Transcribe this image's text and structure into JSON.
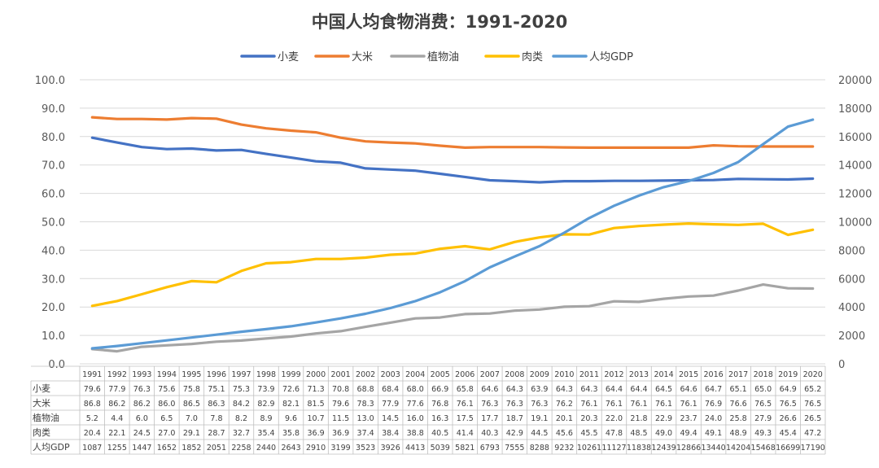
{
  "chart_data": {
    "type": "line",
    "title": "中国人均食物消费：1991-2020",
    "categories": [
      "1991",
      "1992",
      "1993",
      "1994",
      "1995",
      "1996",
      "1997",
      "1998",
      "1999",
      "2000",
      "2001",
      "2002",
      "2003",
      "2004",
      "2005",
      "2006",
      "2007",
      "2008",
      "2009",
      "2010",
      "2011",
      "2012",
      "2013",
      "2014",
      "2015",
      "2016",
      "2017",
      "2018",
      "2019",
      "2020"
    ],
    "y_left": {
      "min": 0,
      "max": 100,
      "ticks": [
        "0.0",
        "10.0",
        "20.0",
        "30.0",
        "40.0",
        "50.0",
        "60.0",
        "70.0",
        "80.0",
        "90.0",
        "100.0"
      ]
    },
    "y_right": {
      "min": 0,
      "max": 20000,
      "ticks": [
        "0",
        "2000",
        "4000",
        "6000",
        "8000",
        "10000",
        "12000",
        "14000",
        "16000",
        "18000",
        "20000"
      ]
    },
    "series": [
      {
        "name": "小麦",
        "axis": "left",
        "color": "#4472C4",
        "values": [
          79.6,
          77.9,
          76.3,
          75.6,
          75.8,
          75.1,
          75.3,
          73.9,
          72.6,
          71.3,
          70.8,
          68.8,
          68.4,
          68.0,
          66.9,
          65.8,
          64.6,
          64.3,
          63.9,
          64.3,
          64.3,
          64.4,
          64.4,
          64.5,
          64.6,
          64.7,
          65.1,
          65.0,
          64.9,
          65.2
        ]
      },
      {
        "name": "大米",
        "axis": "left",
        "color": "#ED7D31",
        "values": [
          86.8,
          86.2,
          86.2,
          86.0,
          86.5,
          86.3,
          84.2,
          82.9,
          82.1,
          81.5,
          79.6,
          78.3,
          77.9,
          77.6,
          76.8,
          76.1,
          76.3,
          76.3,
          76.3,
          76.2,
          76.1,
          76.1,
          76.1,
          76.1,
          76.1,
          76.9,
          76.6,
          76.5,
          76.5,
          76.5
        ]
      },
      {
        "name": "植物油",
        "axis": "left",
        "color": "#A5A5A5",
        "values": [
          5.2,
          4.4,
          6.0,
          6.5,
          7.0,
          7.8,
          8.2,
          8.9,
          9.6,
          10.7,
          11.5,
          13.0,
          14.5,
          16.0,
          16.3,
          17.5,
          17.7,
          18.7,
          19.1,
          20.1,
          20.3,
          22.0,
          21.8,
          22.9,
          23.7,
          24.0,
          25.8,
          27.9,
          26.6,
          26.5
        ]
      },
      {
        "name": "肉类",
        "axis": "left",
        "color": "#FFC000",
        "values": [
          20.4,
          22.1,
          24.5,
          27.0,
          29.1,
          28.7,
          32.7,
          35.4,
          35.8,
          36.9,
          36.9,
          37.4,
          38.4,
          38.8,
          40.5,
          41.4,
          40.3,
          42.9,
          44.5,
          45.6,
          45.5,
          47.8,
          48.5,
          49.0,
          49.4,
          49.1,
          48.9,
          49.3,
          45.4,
          47.2
        ]
      },
      {
        "name": "人均GDP",
        "axis": "right",
        "color": "#5B9BD5",
        "values": [
          1087,
          1255,
          1447,
          1652,
          1852,
          2051,
          2258,
          2440,
          2643,
          2910,
          3199,
          3523,
          3926,
          4413,
          5039,
          5821,
          6793,
          7555,
          8288,
          9232,
          10261,
          11127,
          11838,
          12439,
          12866,
          13440,
          14204,
          15468,
          16699,
          17190
        ]
      }
    ],
    "table": {
      "row_labels": [
        "小麦",
        "大米",
        "植物油",
        "肉类",
        "人均GDP"
      ],
      "rows": [
        [
          "79.6",
          "77.9",
          "76.3",
          "75.6",
          "75.8",
          "75.1",
          "75.3",
          "73.9",
          "72.6",
          "71.3",
          "70.8",
          "68.8",
          "68.4",
          "68.0",
          "66.9",
          "65.8",
          "64.6",
          "64.3",
          "63.9",
          "64.3",
          "64.3",
          "64.4",
          "64.4",
          "64.5",
          "64.6",
          "64.7",
          "65.1",
          "65.0",
          "64.9",
          "65.2"
        ],
        [
          "86.8",
          "86.2",
          "86.2",
          "86.0",
          "86.5",
          "86.3",
          "84.2",
          "82.9",
          "82.1",
          "81.5",
          "79.6",
          "78.3",
          "77.9",
          "77.6",
          "76.8",
          "76.1",
          "76.3",
          "76.3",
          "76.3",
          "76.2",
          "76.1",
          "76.1",
          "76.1",
          "76.1",
          "76.1",
          "76.9",
          "76.6",
          "76.5",
          "76.5",
          "76.5"
        ],
        [
          "5.2",
          "4.4",
          "6.0",
          "6.5",
          "7.0",
          "7.8",
          "8.2",
          "8.9",
          "9.6",
          "10.7",
          "11.5",
          "13.0",
          "14.5",
          "16.0",
          "16.3",
          "17.5",
          "17.7",
          "18.7",
          "19.1",
          "20.1",
          "20.3",
          "22.0",
          "21.8",
          "22.9",
          "23.7",
          "24.0",
          "25.8",
          "27.9",
          "26.6",
          "26.5"
        ],
        [
          "20.4",
          "22.1",
          "24.5",
          "27.0",
          "29.1",
          "28.7",
          "32.7",
          "35.4",
          "35.8",
          "36.9",
          "36.9",
          "37.4",
          "38.4",
          "38.8",
          "40.5",
          "41.4",
          "40.3",
          "42.9",
          "44.5",
          "45.6",
          "45.5",
          "47.8",
          "48.5",
          "49.0",
          "49.4",
          "49.1",
          "48.9",
          "49.3",
          "45.4",
          "47.2"
        ],
        [
          "1087",
          "1255",
          "1447",
          "1652",
          "1852",
          "2051",
          "2258",
          "2440",
          "2643",
          "2910",
          "3199",
          "3523",
          "3926",
          "4413",
          "5039",
          "5821",
          "6793",
          "7555",
          "8288",
          "9232",
          "10261",
          "11127",
          "11838",
          "12439",
          "12866",
          "13440",
          "14204",
          "15468",
          "16699",
          "17190"
        ]
      ]
    },
    "legend_position": "top-center",
    "grid": true
  }
}
